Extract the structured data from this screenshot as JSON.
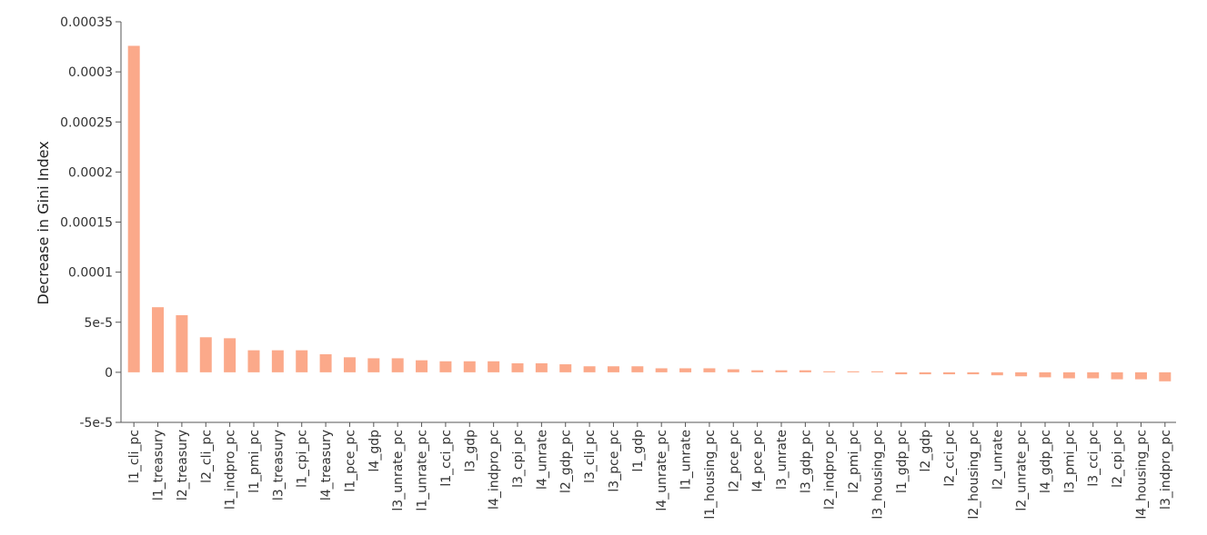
{
  "chart_data": {
    "type": "bar",
    "title": "",
    "xlabel": "",
    "ylabel": "Decrease in Gini Index",
    "ylim": [
      -5e-05,
      0.00035
    ],
    "yticks": [
      "-5e-5",
      "0",
      "5e-5",
      "0.0001",
      "0.00015",
      "0.0002",
      "0.00025",
      "0.0003",
      "0.00035"
    ],
    "ytick_values": [
      -5e-05,
      0,
      5e-05,
      0.0001,
      0.00015,
      0.0002,
      0.00025,
      0.0003,
      0.00035
    ],
    "bar_color": "#fba98a",
    "categories": [
      "l1_cli_pc",
      "l1_treasury",
      "l2_treasury",
      "l2_cli_pc",
      "l1_indpro_pc",
      "l1_pmi_pc",
      "l3_treasury",
      "l1_cpi_pc",
      "l4_treasury",
      "l1_pce_pc",
      "l4_gdp",
      "l3_unrate_pc",
      "l1_unrate_pc",
      "l1_cci_pc",
      "l3_gdp",
      "l4_indpro_pc",
      "l3_cpi_pc",
      "l4_unrate",
      "l2_gdp_pc",
      "l3_cli_pc",
      "l3_pce_pc",
      "l1_gdp",
      "l4_unrate_pc",
      "l1_unrate",
      "l1_housing_pc",
      "l2_pce_pc",
      "l4_pce_pc",
      "l3_unrate",
      "l3_gdp_pc",
      "l2_indpro_pc",
      "l2_pmi_pc",
      "l3_housing_pc",
      "l1_gdp_pc",
      "l2_gdp",
      "l2_cci_pc",
      "l2_housing_pc",
      "l2_unrate",
      "l2_unrate_pc",
      "l4_gdp_pc",
      "l3_pmi_pc",
      "l3_cci_pc",
      "l2_cpi_pc",
      "l4_housing_pc",
      "l3_indpro_pc"
    ],
    "values": [
      0.000326,
      6.5e-05,
      5.7e-05,
      3.5e-05,
      3.4e-05,
      2.2e-05,
      2.2e-05,
      2.2e-05,
      1.8e-05,
      1.5e-05,
      1.4e-05,
      1.4e-05,
      1.2e-05,
      1.1e-05,
      1.1e-05,
      1.1e-05,
      9e-06,
      9e-06,
      8e-06,
      6e-06,
      6e-06,
      6e-06,
      4e-06,
      4e-06,
      4e-06,
      3e-06,
      2e-06,
      2e-06,
      2e-06,
      1e-06,
      1e-06,
      1e-06,
      -2e-06,
      -2e-06,
      -2e-06,
      -2e-06,
      -3e-06,
      -4e-06,
      -5e-06,
      -6e-06,
      -6e-06,
      -7e-06,
      -7e-06,
      -9e-06
    ]
  }
}
